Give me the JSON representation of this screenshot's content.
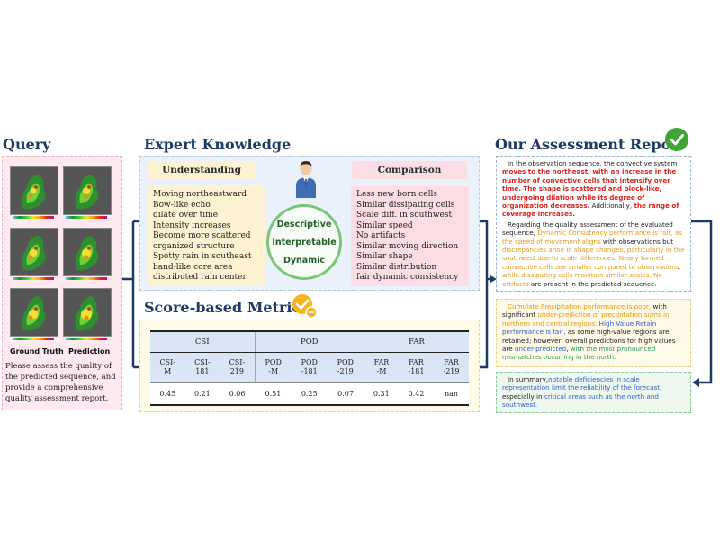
{
  "query": {
    "title": "Query",
    "label_ground_truth": "Ground Truth",
    "label_prediction": "Prediction",
    "prompt": "Please assess the quality of the predicted sequence, and provide a comprehensive quality assessment report."
  },
  "expert": {
    "title": "Expert Knowledge",
    "understanding": {
      "title": "Understanding",
      "items": [
        "Moving northeastward",
        "Bow-like echo",
        "dilate over time",
        "Intensity  increases",
        "Become more scattered",
        "organized structure",
        "Spotty rain in southeast",
        "band-like core area",
        "distributed rain center"
      ]
    },
    "comparison": {
      "title": "Comparison",
      "items": [
        "Less new born cells",
        "Similar dissipating cells",
        "Scale diff. in southwest",
        "Similar speed",
        "No artifacts",
        "Similar moving direction",
        "Similar shape",
        "Similar distribution",
        "fair dynamic consistency"
      ]
    },
    "center": [
      "Descriptive",
      "Interpretable",
      "Dynamic"
    ],
    "colors": {
      "panel": "#eaf1fa",
      "understanding": "#fdf3d3",
      "comparison": "#fbdde3",
      "circle": "#7cc576"
    }
  },
  "metrics": {
    "title": "Score-based Metrics",
    "groups": [
      "CSI",
      "POD",
      "FAR"
    ],
    "columns": [
      "CSI-\nM",
      "CSI-\n181",
      "CSI-\n219",
      "POD\n-M",
      "POD\n-181",
      "POD\n-219",
      "FAR\n-M",
      "FAR\n-181",
      "FAR\n-219"
    ],
    "values": [
      "0.45",
      "0.21",
      "0.06",
      "0.51",
      "0.25",
      "0.07",
      "0.31",
      "0.42",
      "nan"
    ]
  },
  "report": {
    "title": "Our Assessment Report",
    "p1": [
      {
        "t": "In the observation sequence, the convective system ",
        "c": ""
      },
      {
        "t": "moves to the northeast, with an increase in the number of convective cells that intensify over time.",
        "c": "red"
      },
      {
        "t": " ",
        "c": ""
      },
      {
        "t": "The shape is scattered and block-like, undergoing dilation while its degree of organization decreases.",
        "c": "red"
      },
      {
        "t": " Additionally, ",
        "c": ""
      },
      {
        "t": "the range of coverage increases.",
        "c": "red"
      }
    ],
    "p2": [
      {
        "t": "Regarding the quality assessment of the evaluated sequence, ",
        "c": ""
      },
      {
        "t": "Dynamic Consistency performance is fair, as the speed of movement aligns",
        "c": "org"
      },
      {
        "t": " with observations but ",
        "c": ""
      },
      {
        "t": "discrepancies arise in shape changes, particularly in the southwest due to scale differences.",
        "c": "org"
      },
      {
        "t": " ",
        "c": ""
      },
      {
        "t": "Newly formed convective cells are smaller compared to observations, while dissipating cells maintain similar scales.",
        "c": "org"
      },
      {
        "t": " ",
        "c": ""
      },
      {
        "t": "No artifacts",
        "c": "org"
      },
      {
        "t": " are present in the predicted sequence.",
        "c": ""
      }
    ],
    "p3": [
      {
        "t": "Cumulate Precipitation performance is poor,",
        "c": "org"
      },
      {
        "t": " with significant ",
        "c": ""
      },
      {
        "t": "under-prediction of precipitation sums in northern and central regions.",
        "c": "org"
      },
      {
        "t": " ",
        "c": ""
      },
      {
        "t": "High Value Retain performance is fair,",
        "c": "blu"
      },
      {
        "t": " as some high-value regions are retained; however, overall predictions for high values are ",
        "c": ""
      },
      {
        "t": "under-predicted",
        "c": "blu"
      },
      {
        "t": ", ",
        "c": ""
      },
      {
        "t": "with the most pronounced mismatches occurring in the north.",
        "c": "grn"
      }
    ],
    "p4": [
      {
        "t": "In summary,",
        "c": ""
      },
      {
        "t": "notable deficiencies in scale representation limit the reliability of the forecast,",
        "c": "blu"
      },
      {
        "t": " especially in ",
        "c": ""
      },
      {
        "t": "critical areas such as the north and southwest.",
        "c": "blu"
      }
    ]
  },
  "icons": {
    "check_badge": "check-badge-icon",
    "metric_badge": "metric-check-badge-icon",
    "expert": "expert-person-icon"
  }
}
